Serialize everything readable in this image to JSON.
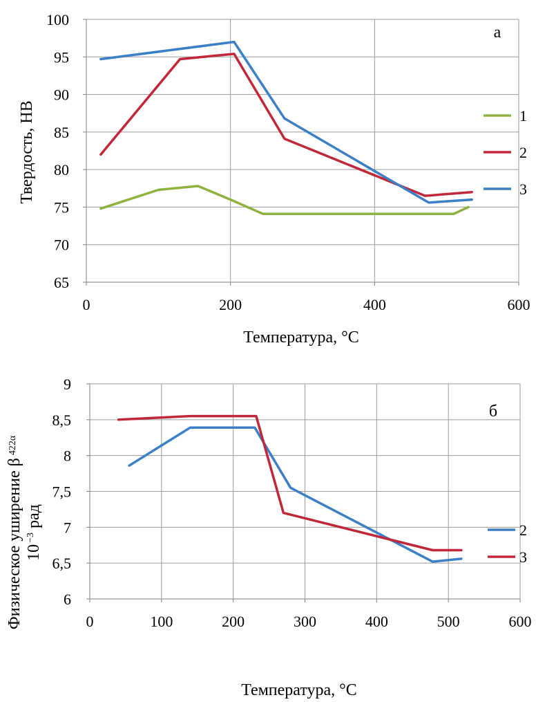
{
  "chart_data": [
    {
      "type": "line",
      "panel_label": "а",
      "xlabel": "Температура, °С",
      "ylabel": "Твердость, НВ",
      "xlim": [
        0,
        600
      ],
      "ylim": [
        65,
        100
      ],
      "x_ticks": [
        "0",
        "200",
        "400",
        "600"
      ],
      "y_ticks": [
        "65",
        "70",
        "75",
        "80",
        "85",
        "90",
        "95",
        "100"
      ],
      "grid": true,
      "legend_position": "right",
      "series": [
        {
          "name": "1",
          "color": "#8db23e",
          "x": [
            20,
            100,
            155,
            200,
            245,
            510,
            530
          ],
          "y": [
            74.8,
            77.3,
            77.8,
            76.0,
            74.1,
            74.1,
            75.0
          ]
        },
        {
          "name": "2",
          "color": "#c0283a",
          "x": [
            20,
            130,
            205,
            275,
            470,
            535
          ],
          "y": [
            82.0,
            94.7,
            95.4,
            84.1,
            76.5,
            77.0
          ]
        },
        {
          "name": "3",
          "color": "#3b7fc4",
          "x": [
            20,
            205,
            275,
            475,
            535
          ],
          "y": [
            94.7,
            97.0,
            86.8,
            75.6,
            76.0
          ]
        }
      ]
    },
    {
      "type": "line",
      "panel_label": "б",
      "xlabel": "Температура, °С",
      "ylabel_main": "Физическое уширение β",
      "ylabel_subscript": "422α",
      "ylabel_line2_base": "10",
      "ylabel_line2_exp": "−3",
      "ylabel_line2_unit": "рад",
      "xlim": [
        0,
        600
      ],
      "ylim": [
        6,
        9
      ],
      "x_ticks": [
        "0",
        "100",
        "200",
        "300",
        "400",
        "500",
        "600"
      ],
      "y_ticks": [
        "6",
        "6,5",
        "7",
        "7,5",
        "8",
        "8,5",
        "9"
      ],
      "grid": true,
      "legend_position": "right",
      "series": [
        {
          "name": "2",
          "color": "#3b7fc4",
          "x": [
            55,
            140,
            230,
            280,
            478,
            518
          ],
          "y": [
            7.86,
            8.39,
            8.39,
            7.55,
            6.52,
            6.56
          ]
        },
        {
          "name": "3",
          "color": "#c0283a",
          "x": [
            40,
            140,
            232,
            270,
            478,
            518
          ],
          "y": [
            8.5,
            8.55,
            8.55,
            7.2,
            6.68,
            6.68
          ]
        }
      ]
    }
  ]
}
